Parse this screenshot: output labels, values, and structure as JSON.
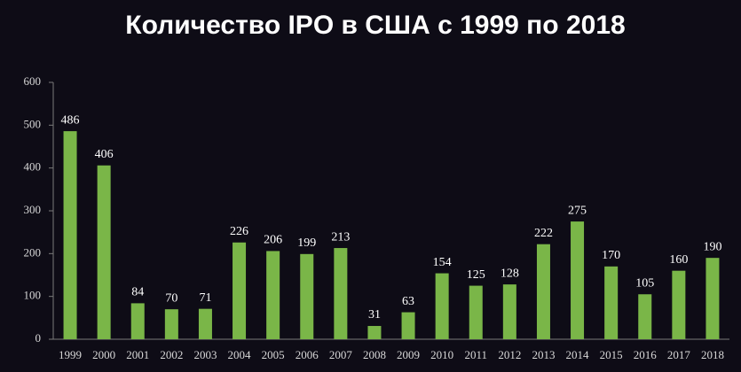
{
  "chart_data": {
    "type": "bar",
    "title": "Количество IPO в США с 1999 по 2018",
    "categories": [
      "1999",
      "2000",
      "2001",
      "2002",
      "2003",
      "2004",
      "2005",
      "2006",
      "2007",
      "2008",
      "2009",
      "2010",
      "2011",
      "2012",
      "2013",
      "2014",
      "2015",
      "2016",
      "2017",
      "2018"
    ],
    "values": [
      486,
      406,
      84,
      70,
      71,
      226,
      206,
      199,
      213,
      31,
      63,
      154,
      125,
      128,
      222,
      275,
      170,
      105,
      160,
      190
    ],
    "color": "#7ab648",
    "ylim": [
      0,
      600
    ],
    "yticks": [
      0,
      100,
      200,
      300,
      400,
      500,
      600
    ],
    "grid": false
  }
}
